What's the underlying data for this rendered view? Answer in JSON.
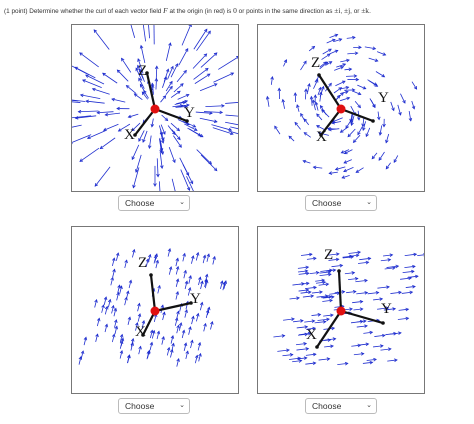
{
  "question": {
    "prefix": "(1 point) Determine whether the curl of each vector field",
    "field_symbol": "F",
    "middle": "at the origin (in red) is",
    "zero_symbol": "0",
    "tail": "or points in the same direction as",
    "dir_i": "±i",
    "dir_j": "±j",
    "or": ", or",
    "dir_k": "±k",
    "end": "."
  },
  "axis_labels": {
    "x": "X",
    "y": "Y",
    "z": "Z"
  },
  "dropdowns": [
    {
      "selected": "Choose"
    },
    {
      "selected": "Choose"
    },
    {
      "selected": "Choose"
    },
    {
      "selected": "Choose"
    }
  ],
  "colors": {
    "vectors": "#1f2ecf",
    "origin": "#e01010",
    "axes": "#111111",
    "border": "#777777"
  },
  "icons": {
    "dropdown": "chevron-down-icon"
  }
}
